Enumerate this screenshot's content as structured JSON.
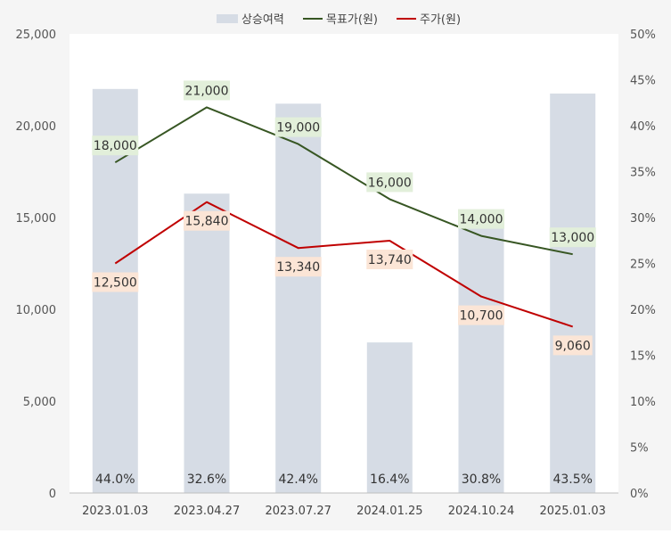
{
  "chart_data": {
    "type": "bar+line",
    "categories": [
      "2023.01.03",
      "2023.04.27",
      "2023.07.27",
      "2024.01.25",
      "2024.10.24",
      "2025.01.03"
    ],
    "bars": {
      "name": "상승여력",
      "values": [
        44.0,
        32.6,
        42.4,
        16.4,
        30.8,
        43.5
      ],
      "labels": [
        "44.0%",
        "32.6%",
        "42.4%",
        "16.4%",
        "30.8%",
        "43.5%"
      ],
      "color": "#d6dce5",
      "axis": "right"
    },
    "series": [
      {
        "name": "목표가(원)",
        "values": [
          18000,
          21000,
          19000,
          16000,
          14000,
          13000
        ],
        "labels": [
          "18,000",
          "21,000",
          "19,000",
          "16,000",
          "14,000",
          "13,000"
        ],
        "color": "#375623",
        "label_bg": "#e2efda",
        "axis": "left"
      },
      {
        "name": "주가(원)",
        "values": [
          12500,
          15840,
          13340,
          13740,
          10700,
          9060
        ],
        "labels": [
          "12,500",
          "15,840",
          "13,340",
          "13,740",
          "10,700",
          "9,060"
        ],
        "color": "#c00000",
        "label_bg": "#fbe5d6",
        "axis": "left"
      }
    ],
    "y_left": {
      "lim": [
        0,
        25000
      ],
      "ticks": [
        "0",
        "5,000",
        "10,000",
        "15,000",
        "20,000",
        "25,000"
      ]
    },
    "y_right": {
      "lim": [
        0,
        50
      ],
      "ticks": [
        "0%",
        "5%",
        "10%",
        "15%",
        "20%",
        "25%",
        "30%",
        "35%",
        "40%",
        "45%",
        "50%"
      ]
    },
    "legend": {
      "position": "top",
      "entries": [
        "상승여력",
        "목표가(원)",
        "주가(원)"
      ]
    },
    "grid": false
  }
}
